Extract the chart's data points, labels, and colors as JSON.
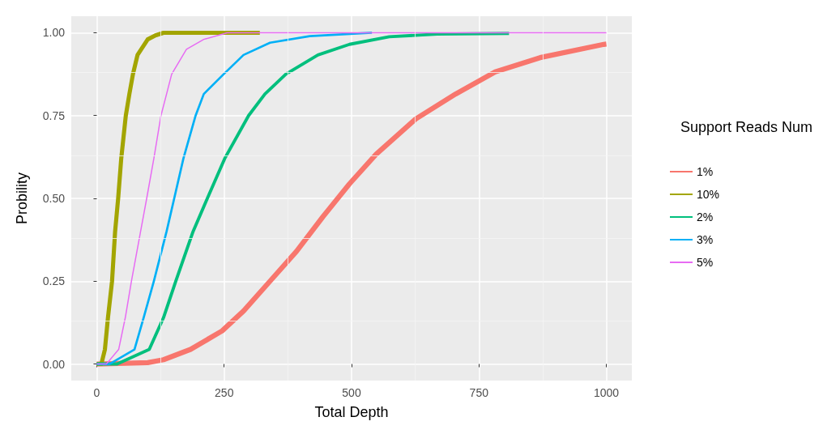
{
  "chart_data": {
    "type": "line",
    "xlabel": "Total Depth",
    "ylabel": "Probility",
    "legend_title": "Support Reads Num",
    "xlim": [
      -50,
      1050
    ],
    "xticks": [
      0,
      250,
      500,
      750,
      1000
    ],
    "ylim": [
      -0.05,
      1.05
    ],
    "yticks": [
      {
        "value": 0,
        "label": "0.00"
      },
      {
        "value": 0.25,
        "label": "0.25"
      },
      {
        "value": 0.5,
        "label": "0.50"
      },
      {
        "value": 0.75,
        "label": "0.75"
      },
      {
        "value": 1,
        "label": "1.00"
      }
    ],
    "grid": true,
    "legend": "right",
    "marker": "none",
    "line_style": "solid",
    "series": [
      {
        "name": "1%",
        "color": "#f8766d",
        "x": [
          0,
          100,
          131,
          184,
          246,
          288,
          340,
          392,
          444,
          496,
          548,
          626,
          704,
          782,
          870,
          995,
          1000
        ],
        "values": [
          0,
          0.004,
          0.013,
          0.044,
          0.1,
          0.16,
          0.25,
          0.34,
          0.445,
          0.544,
          0.633,
          0.74,
          0.815,
          0.882,
          0.925,
          0.965,
          0.966
        ]
      },
      {
        "name": "10%",
        "color": "#a3a500",
        "x": [
          0,
          9,
          16,
          22,
          30,
          36,
          42,
          48,
          57,
          64,
          71,
          80,
          100,
          115,
          131,
          320
        ],
        "values": [
          0,
          0,
          0.044,
          0.14,
          0.25,
          0.4,
          0.5,
          0.62,
          0.75,
          0.815,
          0.875,
          0.933,
          0.98,
          0.992,
          1,
          1
        ]
      },
      {
        "name": "2%",
        "color": "#00bf7d",
        "x": [
          0,
          40,
          103,
          131,
          155,
          189,
          217,
          251,
          298,
          330,
          371,
          434,
          496,
          574,
          668,
          809
        ],
        "values": [
          0,
          0,
          0.044,
          0.14,
          0.25,
          0.4,
          0.5,
          0.62,
          0.75,
          0.815,
          0.875,
          0.933,
          0.965,
          0.988,
          0.996,
          0.998
        ]
      },
      {
        "name": "3%",
        "color": "#00b0f6",
        "x": [
          0,
          25,
          74,
          92,
          112,
          137,
          152,
          170,
          194,
          210,
          249,
          288,
          340,
          418,
          540
        ],
        "values": [
          0,
          0,
          0.044,
          0.14,
          0.25,
          0.4,
          0.5,
          0.62,
          0.75,
          0.815,
          0.875,
          0.933,
          0.97,
          0.99,
          1
        ]
      },
      {
        "name": "5%",
        "color": "#e76bf3",
        "x": [
          0,
          19,
          43,
          56,
          68,
          86,
          98,
          112,
          126,
          137,
          147,
          176,
          210,
          256,
          1000
        ],
        "values": [
          0,
          0,
          0.044,
          0.14,
          0.25,
          0.4,
          0.5,
          0.62,
          0.75,
          0.815,
          0.875,
          0.95,
          0.98,
          1,
          1
        ]
      }
    ]
  }
}
